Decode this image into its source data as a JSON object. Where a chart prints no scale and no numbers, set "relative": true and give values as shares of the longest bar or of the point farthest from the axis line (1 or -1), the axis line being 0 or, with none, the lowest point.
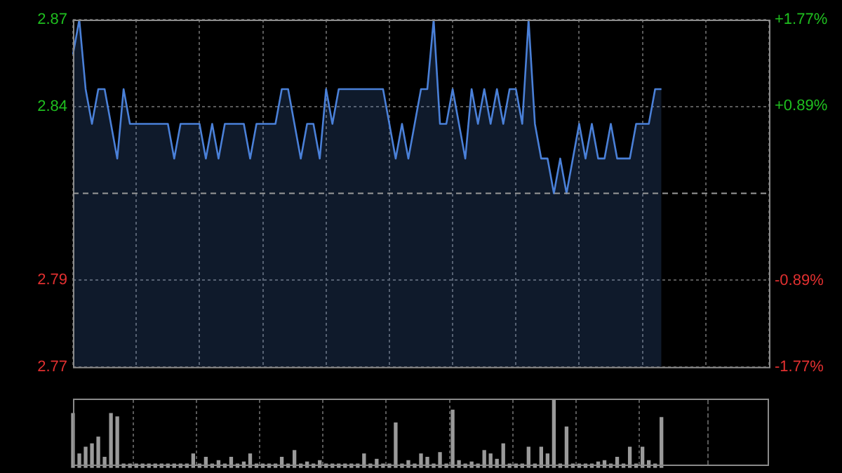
{
  "chart_data": [
    {
      "type": "area",
      "categories": [
        null,
        null,
        null,
        null,
        null,
        null,
        null,
        null,
        null,
        null,
        null,
        null,
        null,
        null,
        null,
        null,
        null,
        null,
        null,
        null,
        null,
        null,
        null,
        null,
        null,
        null,
        null,
        null,
        null,
        null,
        null,
        null,
        null,
        null,
        null,
        null,
        null,
        null,
        null,
        null,
        null,
        null,
        null,
        null,
        null,
        null,
        null,
        null,
        null,
        null,
        null,
        null,
        null,
        null,
        null,
        null,
        null,
        null,
        null,
        null,
        null,
        null,
        null,
        null,
        null,
        null,
        null,
        null,
        null,
        null,
        null,
        null,
        null,
        null,
        null,
        null,
        null,
        null,
        null,
        null,
        null,
        null,
        null,
        null,
        null,
        null,
        null,
        null,
        null,
        null,
        null,
        null,
        null,
        null,
        null,
        null,
        null,
        null,
        null,
        null,
        null,
        null,
        null,
        null,
        null,
        null,
        null,
        null,
        null,
        null,
        null
      ],
      "series": [
        {
          "color": "#4a80d8",
          "values": [
            2.86,
            2.87,
            2.85,
            2.84,
            2.85,
            2.85,
            2.84,
            2.83,
            2.85,
            2.84,
            2.84,
            2.84,
            2.84,
            2.84,
            2.84,
            2.84,
            2.83,
            2.84,
            2.84,
            2.84,
            2.84,
            2.83,
            2.84,
            2.83,
            2.84,
            2.84,
            2.84,
            2.84,
            2.83,
            2.84,
            2.84,
            2.84,
            2.84,
            2.85,
            2.85,
            2.84,
            2.83,
            2.84,
            2.84,
            2.83,
            2.85,
            2.84,
            2.85,
            2.85,
            2.85,
            2.85,
            2.85,
            2.85,
            2.85,
            2.85,
            2.84,
            2.83,
            2.84,
            2.83,
            2.84,
            2.85,
            2.85,
            2.87,
            2.84,
            2.84,
            2.85,
            2.84,
            2.83,
            2.85,
            2.84,
            2.85,
            2.84,
            2.85,
            2.84,
            2.85,
            2.85,
            2.84,
            2.87,
            2.84,
            2.83,
            2.83,
            2.82,
            2.83,
            2.82,
            2.83,
            2.84,
            2.83,
            2.84,
            2.83,
            2.83,
            2.84,
            2.83,
            2.83,
            2.83,
            2.84,
            2.84,
            2.84,
            2.85,
            2.85,
            null,
            null,
            null,
            null,
            null,
            null,
            null,
            null,
            null,
            null,
            null,
            null,
            null,
            null,
            null,
            null,
            null
          ]
        }
      ],
      "ylim": [
        2.77,
        2.87
      ],
      "yticks": [
        {
          "value": 2.87,
          "label": "2.87"
        },
        {
          "value": 2.845,
          "label": "2.84"
        },
        {
          "value": 2.795,
          "label": "2.79"
        },
        {
          "value": 2.77,
          "label": "2.77"
        }
      ],
      "y2lim": [
        -1.77,
        1.77
      ],
      "y2ticks": [
        {
          "value": 1.77,
          "label": "+1.77%"
        },
        {
          "value": 0.89,
          "label": "+0.89%"
        },
        {
          "value": -0.89,
          "label": "-0.89%"
        },
        {
          "value": -1.77,
          "label": "-1.77%"
        }
      ],
      "ref_lines": [
        {
          "axis": "y",
          "value": 2.82,
          "line_style": "dashed"
        }
      ],
      "grid": true,
      "tick_labels": "y",
      "legend": false
    },
    {
      "type": "bar",
      "relative": true,
      "categories": [
        null,
        null,
        null,
        null,
        null,
        null,
        null,
        null,
        null,
        null,
        null,
        null,
        null,
        null,
        null,
        null,
        null,
        null,
        null,
        null,
        null,
        null,
        null,
        null,
        null,
        null,
        null,
        null,
        null,
        null,
        null,
        null,
        null,
        null,
        null,
        null,
        null,
        null,
        null,
        null,
        null,
        null,
        null,
        null,
        null,
        null,
        null,
        null,
        null,
        null,
        null,
        null,
        null,
        null,
        null,
        null,
        null,
        null,
        null,
        null,
        null,
        null,
        null,
        null,
        null,
        null,
        null,
        null,
        null,
        null,
        null,
        null,
        null,
        null,
        null,
        null,
        null,
        null,
        null,
        null,
        null,
        null,
        null,
        null,
        null,
        null,
        null,
        null,
        null,
        null,
        null,
        null,
        null,
        null
      ],
      "series": [
        {
          "color": "#9a9a9a",
          "values": [
            0.8,
            0.2,
            0.3,
            0.35,
            0.45,
            0.15,
            0.8,
            0.75,
            0.05,
            0.05,
            0.05,
            0.05,
            0.05,
            0.05,
            0.05,
            0.05,
            0.05,
            0.05,
            0.05,
            0.2,
            0.05,
            0.15,
            0.05,
            0.1,
            0.05,
            0.15,
            0.05,
            0.08,
            0.2,
            0.05,
            0.05,
            0.05,
            0.05,
            0.15,
            0.05,
            0.25,
            0.05,
            0.08,
            0.05,
            0.1,
            0.05,
            0.05,
            0.05,
            0.05,
            0.05,
            0.05,
            0.2,
            0.05,
            0.12,
            0.05,
            0.05,
            0.66,
            0.05,
            0.1,
            0.05,
            0.2,
            0.15,
            0.05,
            0.22,
            0.05,
            0.85,
            0.1,
            0.05,
            0.08,
            0.05,
            0.25,
            0.2,
            0.12,
            0.35,
            0.05,
            0.05,
            0.05,
            0.3,
            0.05,
            0.3,
            0.2,
            1,
            0.05,
            0.6,
            0.05,
            0.05,
            0.05,
            0.05,
            0.08,
            0.1,
            0.05,
            0.15,
            0.05,
            0.3,
            0.05,
            0.3,
            0.1,
            0.05,
            0.74
          ]
        }
      ],
      "grid": "x",
      "tick_labels": false,
      "legend": false
    }
  ]
}
